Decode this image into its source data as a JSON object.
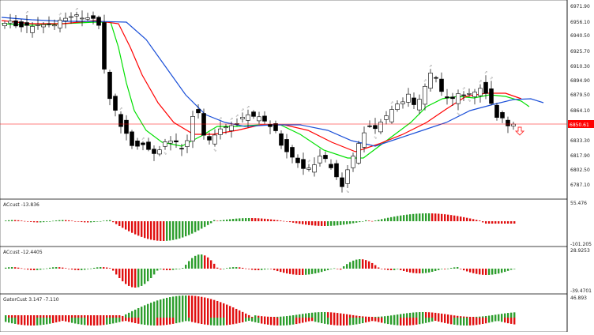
{
  "colors": {
    "background": "#ffffff",
    "candle": "#000000",
    "ma_green": "#00e000",
    "ma_red": "#ff0000",
    "ma_blue": "#1a4fd8",
    "bar_up": "#2e9e2e",
    "bar_down": "#e01010",
    "bid_line": "#ff0000",
    "fractal": "#888888",
    "sell_arrow": "#ff3030"
  },
  "main_chart": {
    "price_axis_labels": [
      "6971.90",
      "6956.10",
      "6940.50",
      "6925.70",
      "6910.30",
      "6894.90",
      "6879.50",
      "6864.10",
      "6833.30",
      "6817.90",
      "6802.50",
      "6787.10"
    ],
    "current_price": "6850.61",
    "signal_arrow_icon": "sell-arrow-down-icon"
  },
  "indicator_panels": [
    {
      "label": "ACcust -13.836",
      "scale_top": "55.476",
      "scale_bottom": "-101.205"
    },
    {
      "label": "ACcust -12.4405",
      "scale_top": "28.9253",
      "scale_bottom": "-39.4701"
    },
    {
      "label": "GatorCust 3.147 -7.110",
      "scale_top": "46.893",
      "scale_bottom": ""
    }
  ]
}
